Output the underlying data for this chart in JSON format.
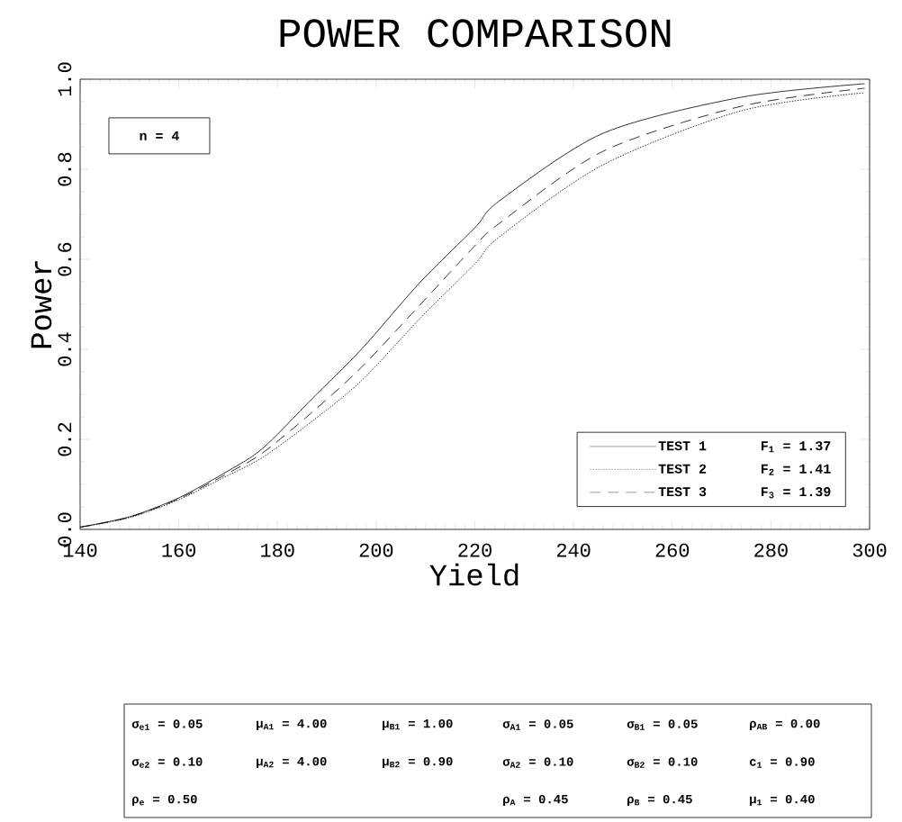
{
  "chart_data": {
    "type": "line",
    "title": "POWER COMPARISON",
    "xlabel": "Yield",
    "ylabel": "Power",
    "x": [
      140,
      150,
      160,
      170,
      177,
      187,
      197,
      209,
      220,
      225,
      246,
      274,
      299
    ],
    "series": [
      {
        "name": "TEST 1",
        "color": "#000000",
        "line_style": "solid",
        "values": [
          0.005,
          0.028,
          0.07,
          0.13,
          0.18,
          0.29,
          0.4,
          0.55,
          0.67,
          0.73,
          0.88,
          0.96,
          0.99
        ]
      },
      {
        "name": "TEST 2",
        "color": "#000000",
        "line_style": "dotted",
        "values": [
          0.005,
          0.026,
          0.066,
          0.12,
          0.16,
          0.24,
          0.33,
          0.47,
          0.59,
          0.65,
          0.81,
          0.93,
          0.97
        ]
      },
      {
        "name": "TEST 3",
        "color": "#000000",
        "line_style": "dashed",
        "values": [
          0.005,
          0.027,
          0.068,
          0.125,
          0.17,
          0.26,
          0.36,
          0.5,
          0.63,
          0.68,
          0.84,
          0.94,
          0.98
        ]
      }
    ],
    "xlim": [
      140,
      300
    ],
    "ylim": [
      0,
      1
    ],
    "xticks": [
      140,
      160,
      180,
      200,
      220,
      240,
      260,
      280,
      300
    ],
    "yticks": [
      {
        "value": 0,
        "label": "0.0"
      },
      {
        "value": 0.2,
        "label": "0.2"
      },
      {
        "value": 0.4,
        "label": "0.4"
      },
      {
        "value": 0.6,
        "label": "0.6"
      },
      {
        "value": 0.8,
        "label": "0.8"
      },
      {
        "value": 1,
        "label": "1.0"
      }
    ],
    "legend": "bottom right",
    "marker": "none",
    "grid": false,
    "annotations": [
      "n = 4",
      "F$_{1}$ = 1.37",
      "F$_{2}$ = 1.41",
      "F$_{3}$ = 1.39",
      "σ$_{e1}$ = 0.05",
      "μ$_{A1}$ = 4.00",
      "μ$_{B1}$ = 1.00",
      "σ$_{A1}$ = 0.05",
      "σ$_{B1}$ = 0.05",
      "ρ$_{AB}$ = 0.00",
      "σ$_{e2}$ = 0.10",
      "μ$_{A2}$ = 4.00",
      "μ$_{B2}$ = 0.90",
      "σ$_{A2}$ = 0.10",
      "σ$_{B2}$ = 0.10",
      "c$_{1}$ = 0.90",
      "ρ$_{e}$ = 0.50",
      "ρ$_{A}$ = 0.45",
      "ρ$_{B}$ = 0.45",
      "μ$_{1}$ = 0.40"
    ]
  }
}
